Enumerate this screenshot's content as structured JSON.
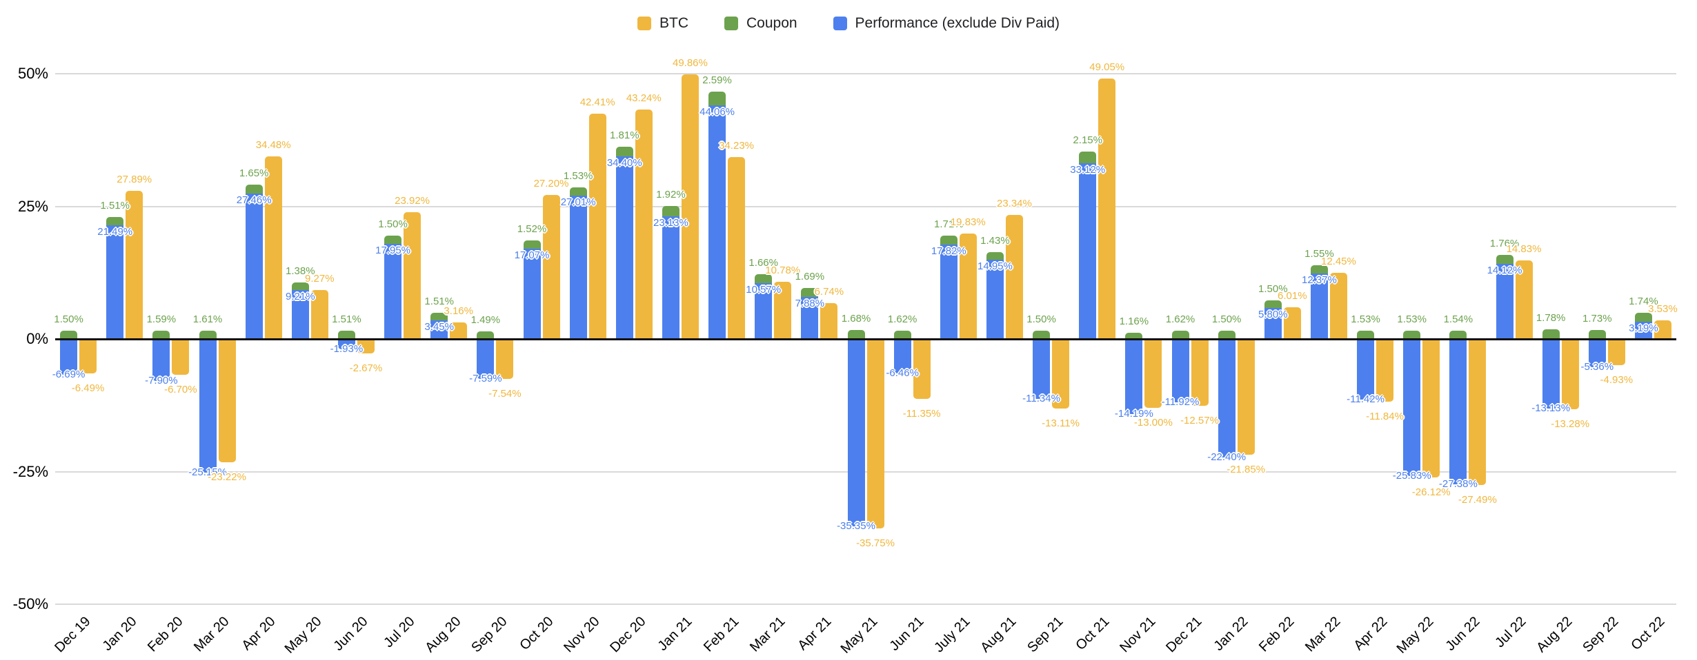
{
  "legend": {
    "position": "top-center",
    "items": [
      {
        "label": "BTC",
        "color": "#F0B73E"
      },
      {
        "label": "Coupon",
        "color": "#6CA24D"
      },
      {
        "label": "Performance (exclude Div Paid)",
        "color": "#4D80EE"
      }
    ]
  },
  "chart_data": {
    "type": "bar",
    "title": "",
    "xlabel": "",
    "ylabel": "",
    "ylim": [
      -50,
      50
    ],
    "y_ticks": [
      "50%",
      "25%",
      "0%",
      "-25%",
      "-50%"
    ],
    "y_tick_values": [
      50,
      25,
      0,
      -25,
      -50
    ],
    "grid": true,
    "legend_position": "top-center",
    "stacking": "Coupon is stacked on top of Performance (exclude Div Paid); BTC is a separate adjacent column per month",
    "value_format": "percent, two decimals, labels colored like their series with white halo",
    "categories": [
      "Dec 19",
      "Jan 20",
      "Feb 20",
      "Mar 20",
      "Apr 20",
      "May 20",
      "Jun 20",
      "Jul 20",
      "Aug 20",
      "Sep 20",
      "Oct 20",
      "Nov 20",
      "Dec 20",
      "Jan 21",
      "Feb 21",
      "Mar 21",
      "Apr 21",
      "May 21",
      "Jun 21",
      "July 21",
      "Aug 21",
      "Sep 21",
      "Oct 21",
      "Nov 21",
      "Dec 21",
      "Jan 22",
      "Feb 22",
      "Mar 22",
      "Apr 22",
      "May 22",
      "Jun 22",
      "Jul 22",
      "Aug 22",
      "Sep 22",
      "Oct 22"
    ],
    "series": [
      {
        "name": "BTC",
        "color": "#F0B73E",
        "values": [
          -6.49,
          27.89,
          -6.7,
          -23.22,
          34.48,
          9.27,
          -2.67,
          23.92,
          3.16,
          -7.54,
          27.2,
          42.41,
          43.24,
          49.86,
          34.23,
          10.78,
          6.74,
          -35.75,
          -11.35,
          19.83,
          23.34,
          -13.11,
          49.05,
          -13.0,
          -12.57,
          -21.85,
          6.01,
          12.45,
          -11.84,
          -26.12,
          -27.49,
          14.83,
          -13.28,
          -4.93,
          3.53
        ]
      },
      {
        "name": "Coupon",
        "color": "#6CA24D",
        "values": [
          1.5,
          1.51,
          1.59,
          1.61,
          1.65,
          1.38,
          1.51,
          1.5,
          1.51,
          1.49,
          1.52,
          1.53,
          1.81,
          1.92,
          2.59,
          1.66,
          1.69,
          1.68,
          1.62,
          1.71,
          1.43,
          1.5,
          2.15,
          1.16,
          1.62,
          1.5,
          1.5,
          1.55,
          1.53,
          1.53,
          1.54,
          1.76,
          1.78,
          1.73,
          1.74
        ]
      },
      {
        "name": "Performance (exclude Div Paid)",
        "color": "#4D80EE",
        "values": [
          -6.69,
          21.49,
          -7.9,
          -25.15,
          27.46,
          9.21,
          -1.93,
          17.95,
          3.45,
          -7.59,
          17.07,
          27.01,
          34.4,
          23.13,
          44.06,
          10.57,
          7.88,
          -35.35,
          -6.46,
          17.82,
          14.95,
          -11.34,
          33.12,
          -14.19,
          -11.92,
          -22.4,
          5.8,
          12.37,
          -11.42,
          -25.83,
          -27.38,
          14.12,
          -13.13,
          -5.36,
          3.19
        ]
      }
    ]
  }
}
